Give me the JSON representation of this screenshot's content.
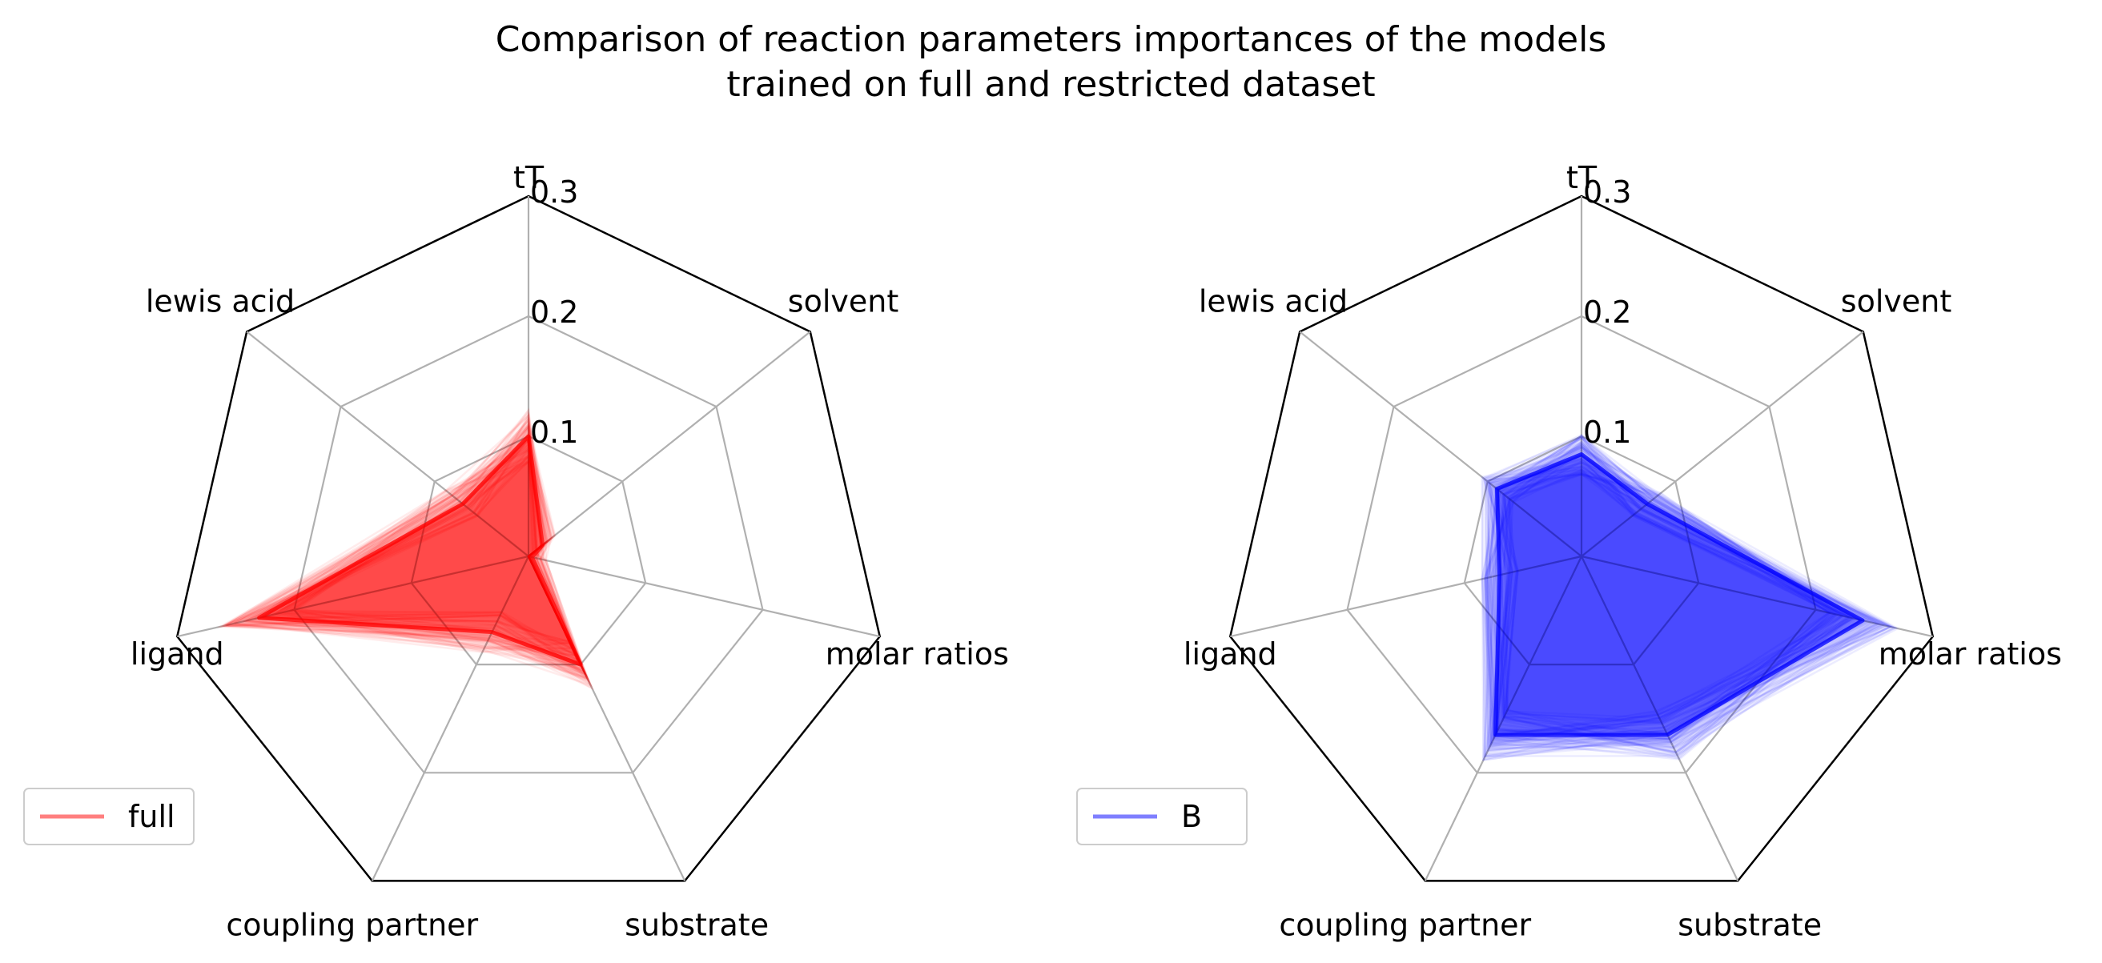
{
  "title": [
    "Comparison of reaction parameters importances of the models",
    "trained on full and restricted dataset"
  ],
  "chart_data": [
    {
      "type": "radar",
      "axes": [
        "tT",
        "solvent",
        "molar ratios",
        "substrate",
        "coupling partner",
        "ligand",
        "lewis acid"
      ],
      "rlim": [
        0,
        0.3
      ],
      "rticks": [
        0.1,
        0.2,
        0.3
      ],
      "rtick_labels": [
        "0.1",
        "0.2",
        "0.3"
      ],
      "grid": true,
      "legend_position": "lower-left",
      "series": [
        {
          "name": "full",
          "color": "#ff0000",
          "values": [
            0.1,
            0.015,
            0.003,
            0.1,
            0.07,
            0.23,
            0.07
          ]
        }
      ],
      "ensemble_spread": 0.03
    },
    {
      "type": "radar",
      "axes": [
        "tT",
        "solvent",
        "molar ratios",
        "substrate",
        "coupling partner",
        "ligand",
        "lewis acid"
      ],
      "rlim": [
        0,
        0.3
      ],
      "rticks": [
        0.1,
        0.2,
        0.3
      ],
      "rtick_labels": [
        "0.1",
        "0.2",
        "0.3"
      ],
      "grid": true,
      "legend_position": "lower-left",
      "series": [
        {
          "name": "B",
          "color": "#0000ff",
          "values": [
            0.085,
            0.07,
            0.24,
            0.165,
            0.165,
            0.07,
            0.09
          ]
        }
      ],
      "ensemble_spread": 0.025
    }
  ]
}
